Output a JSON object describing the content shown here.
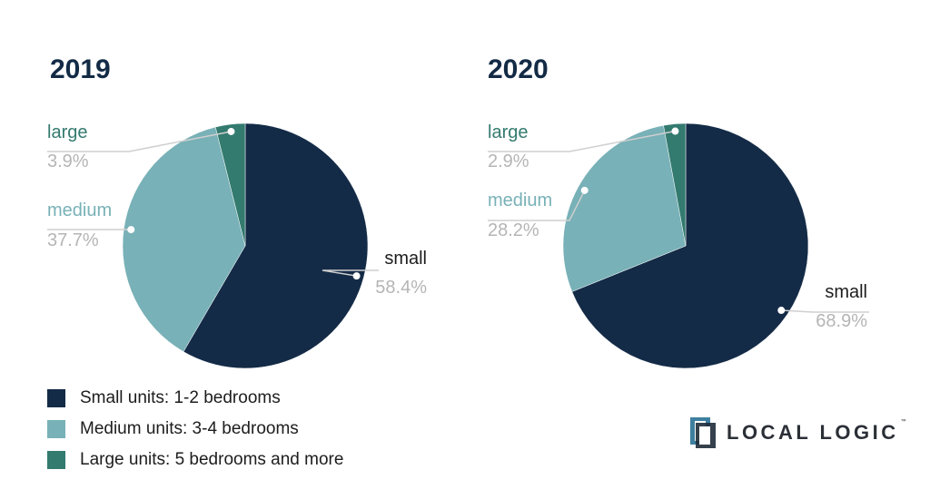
{
  "colors": {
    "small": "#142b47",
    "medium": "#78b1b7",
    "large": "#337a6f",
    "title": "#132b45",
    "percent": "#b5b5b5",
    "leader": "#cfcfcf"
  },
  "chart_data": [
    {
      "type": "pie",
      "title": "2019",
      "slices": [
        {
          "label": "small",
          "value": 58.4,
          "display": "58.4%"
        },
        {
          "label": "medium",
          "value": 37.7,
          "display": "37.7%"
        },
        {
          "label": "large",
          "value": 3.9,
          "display": "3.9%"
        }
      ]
    },
    {
      "type": "pie",
      "title": "2020",
      "slices": [
        {
          "label": "small",
          "value": 68.9,
          "display": "68.9%"
        },
        {
          "label": "medium",
          "value": 28.2,
          "display": "28.2%"
        },
        {
          "label": "large",
          "value": 2.9,
          "display": "2.9%"
        }
      ]
    }
  ],
  "legend": [
    {
      "key": "small",
      "label": "Small units: 1-2 bedrooms"
    },
    {
      "key": "medium",
      "label": "Medium units: 3-4 bedrooms"
    },
    {
      "key": "large",
      "label": "Large units: 5 bedrooms and more"
    }
  ],
  "brand": {
    "name": "LOCAL LOGIC",
    "tm": "™"
  }
}
